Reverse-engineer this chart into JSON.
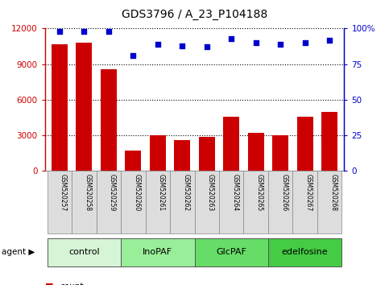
{
  "title": "GDS3796 / A_23_P104188",
  "samples": [
    "GSM520257",
    "GSM520258",
    "GSM520259",
    "GSM520260",
    "GSM520261",
    "GSM520262",
    "GSM520263",
    "GSM520264",
    "GSM520265",
    "GSM520266",
    "GSM520267",
    "GSM520268"
  ],
  "counts": [
    10700,
    10800,
    8600,
    1700,
    3000,
    2600,
    2900,
    4600,
    3200,
    3000,
    4600,
    5000
  ],
  "percentile_ranks": [
    98,
    98,
    98,
    81,
    89,
    88,
    87,
    93,
    90,
    89,
    90,
    92
  ],
  "bar_color": "#cc0000",
  "dot_color": "#0000cc",
  "ylim_left": [
    0,
    12000
  ],
  "ylim_right": [
    0,
    100
  ],
  "yticks_left": [
    0,
    3000,
    6000,
    9000,
    12000
  ],
  "yticks_right": [
    0,
    25,
    50,
    75,
    100
  ],
  "yticklabels_right": [
    "0",
    "25",
    "50",
    "75",
    "100%"
  ],
  "groups": [
    {
      "label": "control",
      "start": 0,
      "end": 3,
      "color": "#d6f5d6"
    },
    {
      "label": "InoPAF",
      "start": 3,
      "end": 6,
      "color": "#99ee99"
    },
    {
      "label": "GlcPAF",
      "start": 6,
      "end": 9,
      "color": "#66dd66"
    },
    {
      "label": "edelfosine",
      "start": 9,
      "end": 12,
      "color": "#44cc44"
    }
  ],
  "bg_sample_box": "#dddddd",
  "bg_sample_edge": "#888888"
}
